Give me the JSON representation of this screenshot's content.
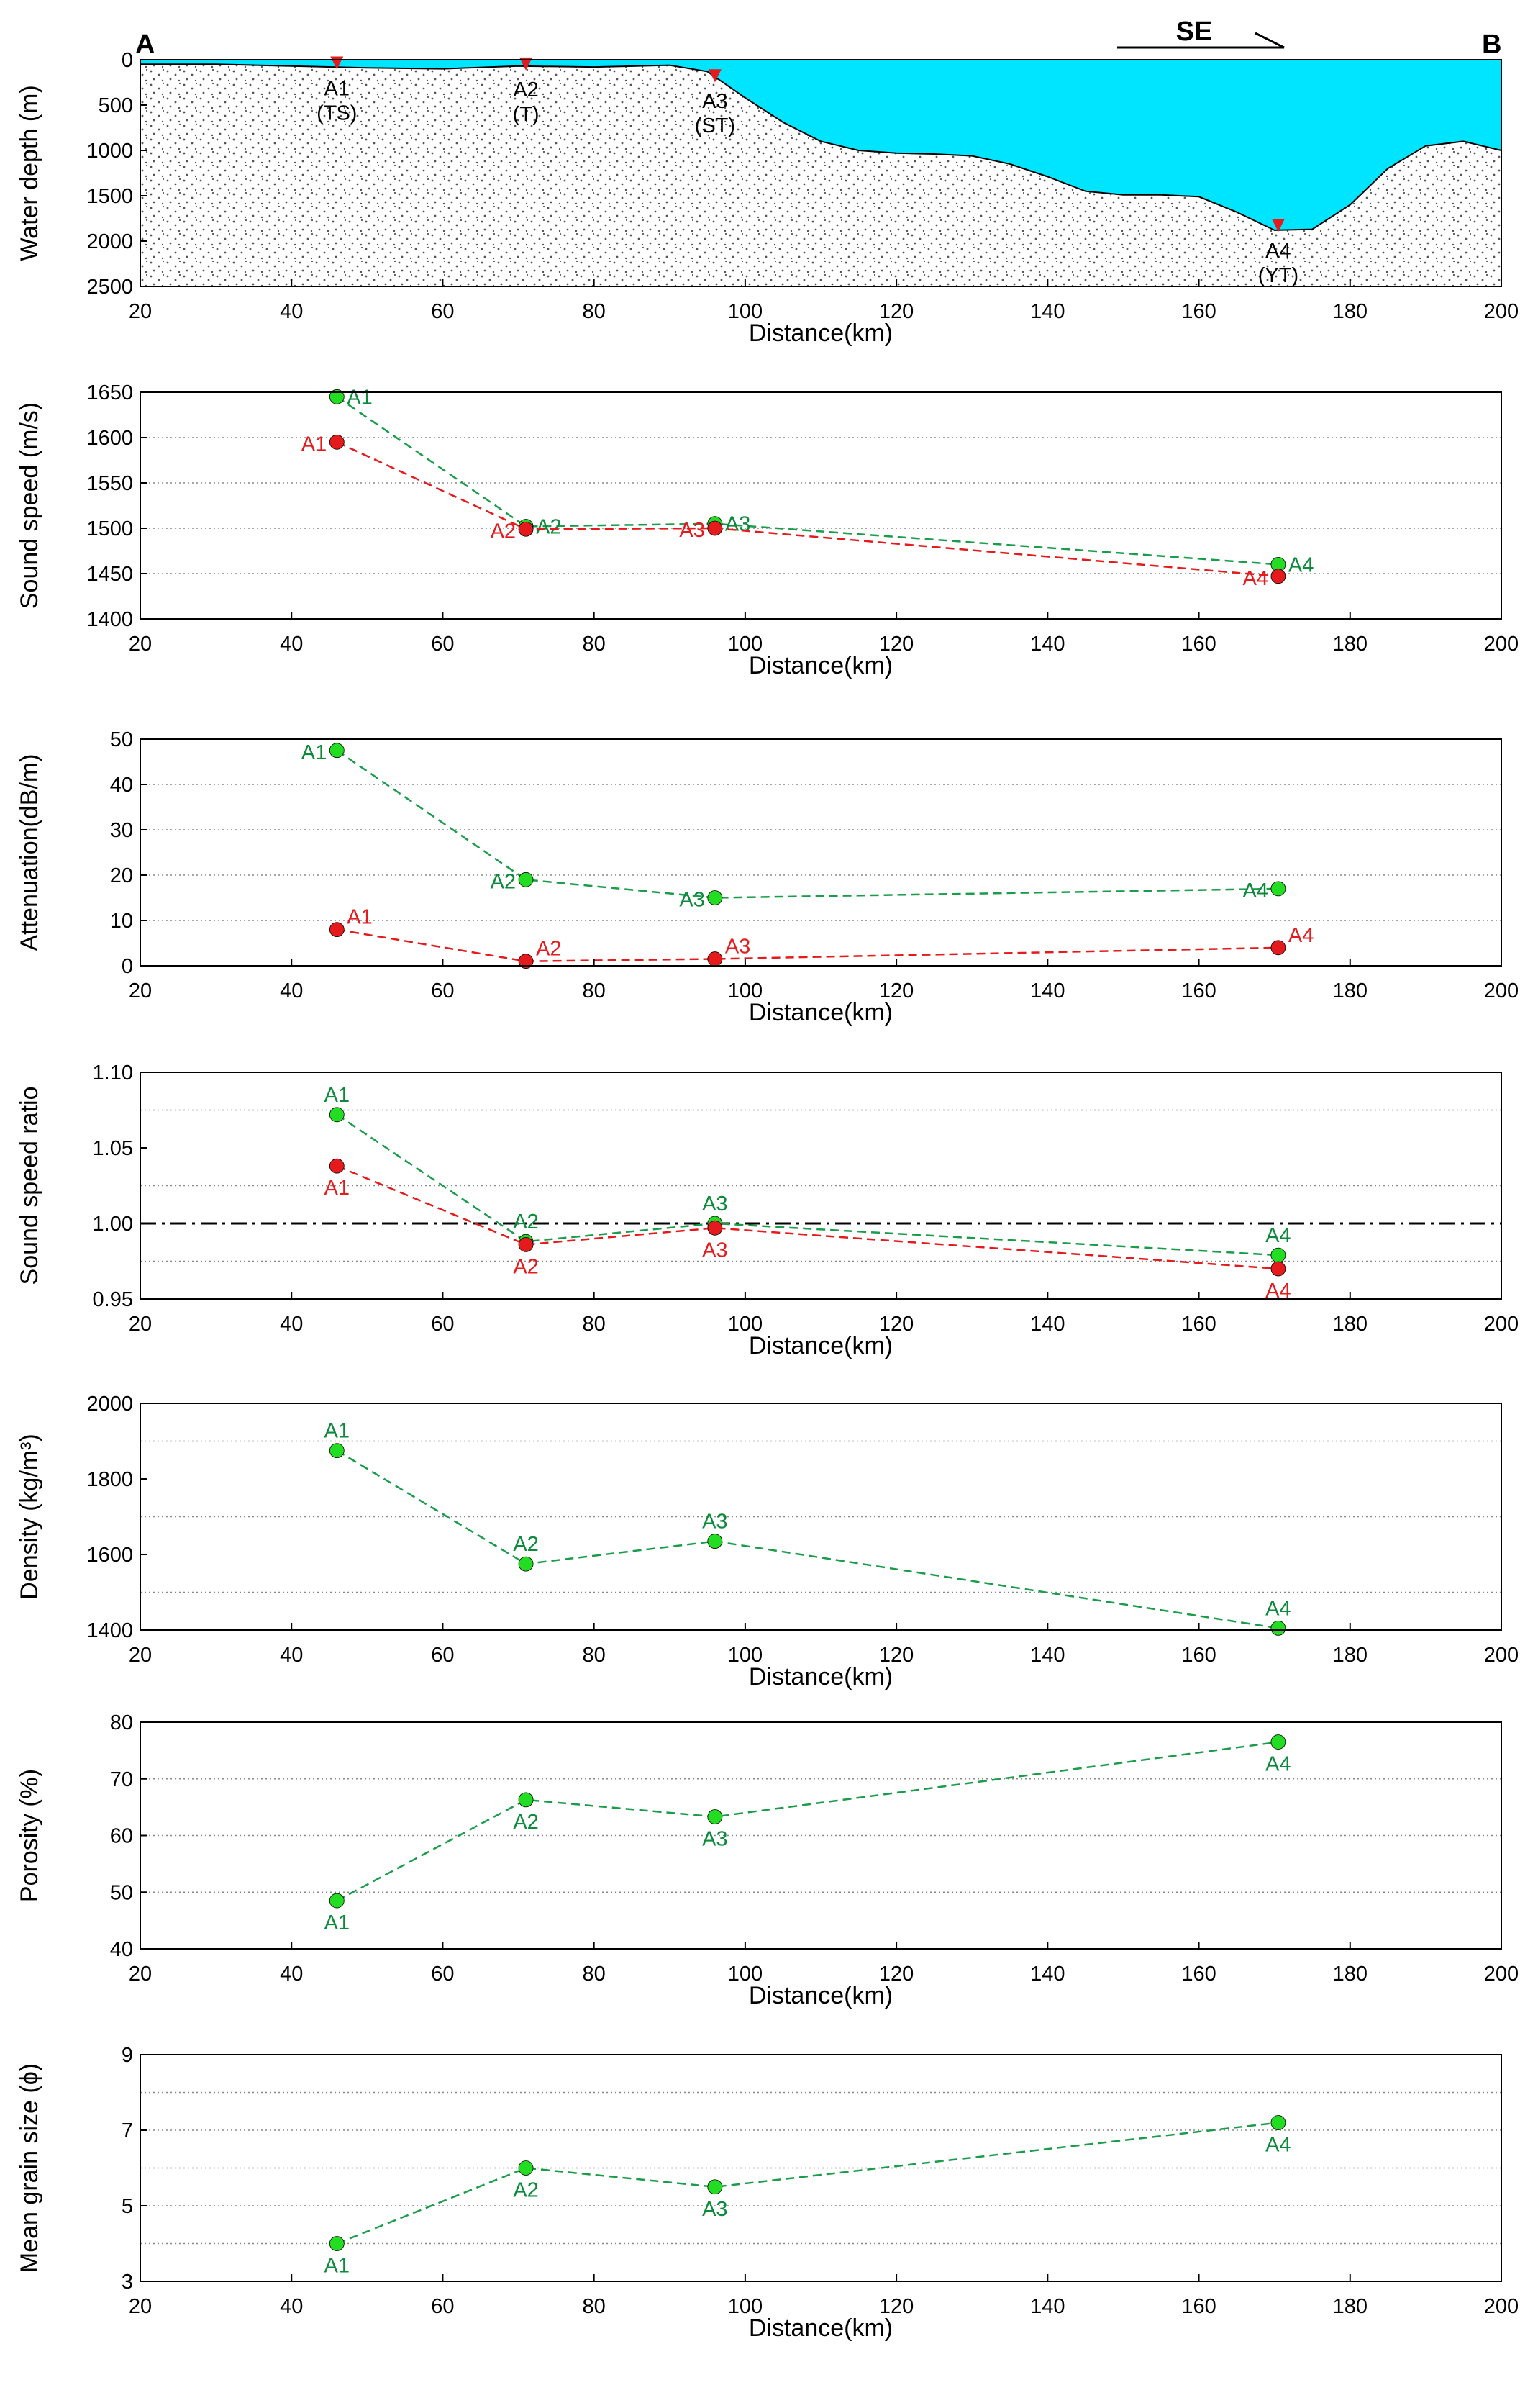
{
  "colors": {
    "green_marker": "#22dd22",
    "green_line": "#1a9c4a",
    "green_text": "#0a8a3a",
    "red": "#e41a1c",
    "water": "#00e5ff",
    "seabed_dots": "#555555"
  },
  "chart_data": [
    {
      "id": "profile",
      "type": "area",
      "title": "",
      "xlabel": "Distance(km)",
      "ylabel": "Water depth (m)",
      "xlim": [
        20,
        200
      ],
      "ylim": [
        0,
        2500
      ],
      "y_inverted": true,
      "xticks": [
        "20",
        "40",
        "60",
        "80",
        "100",
        "120",
        "140",
        "160",
        "180",
        "200"
      ],
      "yticks": [
        "0",
        "500",
        "1000",
        "1500",
        "2000",
        "2500"
      ],
      "seabed": [
        [
          20,
          50
        ],
        [
          30,
          50
        ],
        [
          40,
          70
        ],
        [
          50,
          90
        ],
        [
          60,
          100
        ],
        [
          70,
          70
        ],
        [
          80,
          80
        ],
        [
          90,
          60
        ],
        [
          95,
          130
        ],
        [
          100,
          420
        ],
        [
          105,
          690
        ],
        [
          110,
          900
        ],
        [
          115,
          1000
        ],
        [
          120,
          1030
        ],
        [
          125,
          1040
        ],
        [
          130,
          1060
        ],
        [
          135,
          1150
        ],
        [
          140,
          1290
        ],
        [
          145,
          1450
        ],
        [
          150,
          1490
        ],
        [
          155,
          1490
        ],
        [
          160,
          1510
        ],
        [
          165,
          1680
        ],
        [
          170,
          1880
        ],
        [
          175,
          1870
        ],
        [
          180,
          1600
        ],
        [
          185,
          1200
        ],
        [
          190,
          950
        ],
        [
          195,
          900
        ],
        [
          200,
          1000
        ]
      ],
      "stations": [
        {
          "name": "A1",
          "type": "(TS)",
          "x": 46,
          "depth": 60
        },
        {
          "name": "A2",
          "type": "(T)",
          "x": 71,
          "depth": 70
        },
        {
          "name": "A3",
          "type": "(ST)",
          "x": 96,
          "depth": 200
        },
        {
          "name": "A4",
          "type": "(YT)",
          "x": 170.5,
          "depth": 1850
        }
      ],
      "end_labels": {
        "left": "A",
        "right": "B"
      },
      "direction": "SE"
    },
    {
      "id": "sound_speed",
      "type": "line",
      "xlabel": "Distance(km)",
      "ylabel": "Sound speed (m/s)",
      "xlim": [
        20,
        200
      ],
      "ylim": [
        1400,
        1650
      ],
      "xticks": [
        "20",
        "40",
        "60",
        "80",
        "100",
        "120",
        "140",
        "160",
        "180",
        "200"
      ],
      "yticks": [
        "1400",
        "1450",
        "1500",
        "1550",
        "1600",
        "1650"
      ],
      "grid_y": [
        1450,
        1500,
        1550,
        1600
      ],
      "series": [
        {
          "name": "green",
          "color": "green",
          "values": [
            {
              "x": 46,
              "y": 1645,
              "label": "A1",
              "pos": "right"
            },
            {
              "x": 71,
              "y": 1502,
              "label": "A2",
              "pos": "right"
            },
            {
              "x": 96,
              "y": 1505,
              "label": "A3",
              "pos": "right"
            },
            {
              "x": 170.5,
              "y": 1460,
              "label": "A4",
              "pos": "right"
            }
          ]
        },
        {
          "name": "red",
          "color": "red",
          "values": [
            {
              "x": 46,
              "y": 1595,
              "label": "A1",
              "pos": "left"
            },
            {
              "x": 71,
              "y": 1499,
              "label": "A2",
              "pos": "left"
            },
            {
              "x": 96,
              "y": 1500,
              "label": "A3",
              "pos": "left"
            },
            {
              "x": 170.5,
              "y": 1447,
              "label": "A4",
              "pos": "left"
            }
          ]
        }
      ]
    },
    {
      "id": "attenuation",
      "type": "line",
      "xlabel": "Distance(km)",
      "ylabel": "Attenuation(dB/m)",
      "xlim": [
        20,
        200
      ],
      "ylim": [
        0,
        50
      ],
      "xticks": [
        "20",
        "40",
        "60",
        "80",
        "100",
        "120",
        "140",
        "160",
        "180",
        "200"
      ],
      "yticks": [
        "0",
        "10",
        "20",
        "30",
        "40",
        "50"
      ],
      "grid_y": [
        10,
        20,
        30,
        40
      ],
      "series": [
        {
          "name": "green",
          "color": "green",
          "values": [
            {
              "x": 46,
              "y": 47.5,
              "label": "A1",
              "pos": "left"
            },
            {
              "x": 71,
              "y": 19,
              "label": "A2",
              "pos": "left"
            },
            {
              "x": 96,
              "y": 15,
              "label": "A3",
              "pos": "left"
            },
            {
              "x": 170.5,
              "y": 17,
              "label": "A4",
              "pos": "left"
            }
          ]
        },
        {
          "name": "red",
          "color": "red",
          "values": [
            {
              "x": 46,
              "y": 8,
              "label": "A1",
              "pos": "upright"
            },
            {
              "x": 71,
              "y": 1,
              "label": "A2",
              "pos": "upright"
            },
            {
              "x": 96,
              "y": 1.5,
              "label": "A3",
              "pos": "upright"
            },
            {
              "x": 170.5,
              "y": 4,
              "label": "A4",
              "pos": "upright"
            }
          ]
        }
      ]
    },
    {
      "id": "speed_ratio",
      "type": "line",
      "xlabel": "Distance(km)",
      "ylabel": "Sound speed ratio",
      "xlim": [
        20,
        200
      ],
      "ylim": [
        0.95,
        1.1
      ],
      "xticks": [
        "20",
        "40",
        "60",
        "80",
        "100",
        "120",
        "140",
        "160",
        "180",
        "200"
      ],
      "yticks": [
        "0.95",
        "1.00",
        "1.05",
        "1.10"
      ],
      "grid_y": [
        0.975,
        1.025,
        1.075
      ],
      "ref_line": 1.0,
      "series": [
        {
          "name": "green",
          "color": "green",
          "values": [
            {
              "x": 46,
              "y": 1.072,
              "label": "A1",
              "pos": "above"
            },
            {
              "x": 71,
              "y": 0.988,
              "label": "A2",
              "pos": "above"
            },
            {
              "x": 96,
              "y": 1.0,
              "label": "A3",
              "pos": "above"
            },
            {
              "x": 170.5,
              "y": 0.979,
              "label": "A4",
              "pos": "above"
            }
          ]
        },
        {
          "name": "red",
          "color": "red",
          "values": [
            {
              "x": 46,
              "y": 1.038,
              "label": "A1",
              "pos": "below"
            },
            {
              "x": 71,
              "y": 0.986,
              "label": "A2",
              "pos": "below"
            },
            {
              "x": 96,
              "y": 0.997,
              "label": "A3",
              "pos": "below"
            },
            {
              "x": 170.5,
              "y": 0.97,
              "label": "A4",
              "pos": "below"
            }
          ]
        }
      ]
    },
    {
      "id": "density",
      "type": "line",
      "xlabel": "Distance(km)",
      "ylabel": "Density (kg/m³)",
      "xlim": [
        20,
        200
      ],
      "ylim": [
        1400,
        2000
      ],
      "xticks": [
        "20",
        "40",
        "60",
        "80",
        "100",
        "120",
        "140",
        "160",
        "180",
        "200"
      ],
      "yticks": [
        "1400",
        "1600",
        "1800",
        "2000"
      ],
      "grid_y": [
        1500,
        1700,
        1900
      ],
      "series": [
        {
          "name": "green",
          "color": "green",
          "values": [
            {
              "x": 46,
              "y": 1875,
              "label": "A1",
              "pos": "above"
            },
            {
              "x": 71,
              "y": 1575,
              "label": "A2",
              "pos": "above"
            },
            {
              "x": 96,
              "y": 1635,
              "label": "A3",
              "pos": "above"
            },
            {
              "x": 170.5,
              "y": 1405,
              "label": "A4",
              "pos": "above"
            }
          ]
        }
      ]
    },
    {
      "id": "porosity",
      "type": "line",
      "xlabel": "Distance(km)",
      "ylabel": "Porosity (%)",
      "xlim": [
        20,
        200
      ],
      "ylim": [
        40,
        80
      ],
      "xticks": [
        "20",
        "40",
        "60",
        "80",
        "100",
        "120",
        "140",
        "160",
        "180",
        "200"
      ],
      "yticks": [
        "40",
        "50",
        "60",
        "70",
        "80"
      ],
      "grid_y": [
        50,
        60,
        70
      ],
      "series": [
        {
          "name": "green",
          "color": "green",
          "values": [
            {
              "x": 46,
              "y": 48.5,
              "label": "A1",
              "pos": "below"
            },
            {
              "x": 71,
              "y": 66.3,
              "label": "A2",
              "pos": "below"
            },
            {
              "x": 96,
              "y": 63.3,
              "label": "A3",
              "pos": "below"
            },
            {
              "x": 170.5,
              "y": 76.5,
              "label": "A4",
              "pos": "below"
            }
          ]
        }
      ]
    },
    {
      "id": "grain_size",
      "type": "line",
      "xlabel": "Distance(km)",
      "ylabel": "Mean grain size (ϕ)",
      "xlim": [
        20,
        200
      ],
      "ylim": [
        3,
        9
      ],
      "xticks": [
        "20",
        "40",
        "60",
        "80",
        "100",
        "120",
        "140",
        "160",
        "180",
        "200"
      ],
      "yticks": [
        "3",
        "5",
        "7",
        "9"
      ],
      "grid_y": [
        4,
        5,
        6,
        7,
        8
      ],
      "series": [
        {
          "name": "green",
          "color": "green",
          "values": [
            {
              "x": 46,
              "y": 4.0,
              "label": "A1",
              "pos": "below"
            },
            {
              "x": 71,
              "y": 6.0,
              "label": "A2",
              "pos": "below"
            },
            {
              "x": 96,
              "y": 5.5,
              "label": "A3",
              "pos": "below"
            },
            {
              "x": 170.5,
              "y": 7.2,
              "label": "A4",
              "pos": "below"
            }
          ]
        }
      ]
    }
  ]
}
